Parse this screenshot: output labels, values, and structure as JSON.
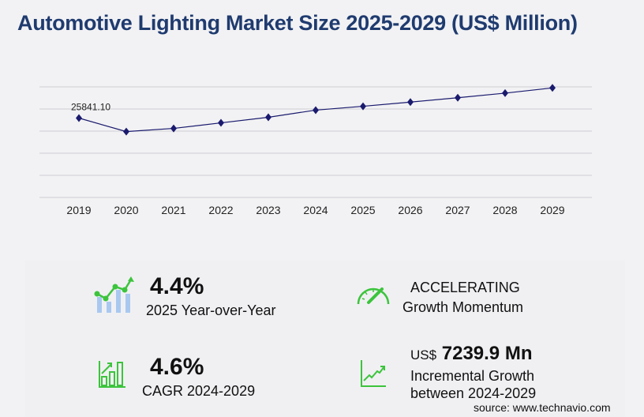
{
  "title": "Automotive Lighting Market Size 2025-2029 (US$ Million)",
  "chart_data": {
    "type": "line",
    "title": "Automotive Lighting Market Size 2025-2029 (US$ Million)",
    "categories": [
      "2019",
      "2020",
      "2021",
      "2022",
      "2023",
      "2024",
      "2025",
      "2026",
      "2027",
      "2028",
      "2029"
    ],
    "values": [
      25841.1,
      21445,
      22480,
      24290,
      26100,
      28427,
      29678,
      31044,
      32472,
      33966,
      35667
    ],
    "data_labels": {
      "2019": "25841.10"
    },
    "ylim": [
      0,
      36000
    ],
    "grid": true,
    "y_tick_labels_visible": false,
    "line_color": "#1a1a6e",
    "marker": "diamond"
  },
  "stats": {
    "yoy_value": "4.4%",
    "yoy_label": "2025 Year-over-Year",
    "momentum_value": "ACCELERATING",
    "momentum_label": "Growth Momentum",
    "cagr_value": "4.6%",
    "cagr_label": "CAGR 2024-2029",
    "incr_prefix": "US$",
    "incr_value": "7239.9 Mn",
    "incr_label_1": "Incremental Growth",
    "incr_label_2": "between 2024-2029"
  },
  "source": "source: www.technavio.com",
  "colors": {
    "title": "#1f3b6f",
    "accent": "#3cc43c",
    "bars": "#a9c8f0",
    "line": "#1a1a6e"
  }
}
